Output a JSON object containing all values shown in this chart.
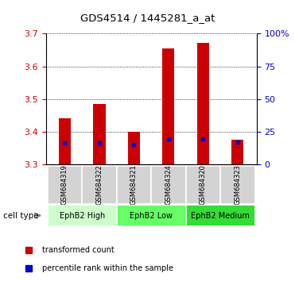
{
  "title": "GDS4514 / 1445281_a_at",
  "samples": [
    "GSM684319",
    "GSM684322",
    "GSM684321",
    "GSM684324",
    "GSM684320",
    "GSM684323"
  ],
  "transformed_counts": [
    3.44,
    3.485,
    3.4,
    3.655,
    3.672,
    3.375
  ],
  "percentile_ranks": [
    3.365,
    3.365,
    3.362,
    3.378,
    3.378,
    3.368
  ],
  "bar_base": 3.3,
  "ylim_left": [
    3.3,
    3.7
  ],
  "ylim_right": [
    0,
    100
  ],
  "yticks_left": [
    3.3,
    3.4,
    3.5,
    3.6,
    3.7
  ],
  "yticks_right": [
    0,
    25,
    50,
    75,
    100
  ],
  "ytick_labels_right": [
    "0",
    "25",
    "50",
    "75",
    "100%"
  ],
  "groups": [
    {
      "label": "EphB2 High",
      "indices": [
        0,
        1
      ],
      "color": "#ccffcc"
    },
    {
      "label": "EphB2 Low",
      "indices": [
        2,
        3
      ],
      "color": "#66ff66"
    },
    {
      "label": "EphB2 Medium",
      "indices": [
        4,
        5
      ],
      "color": "#33dd33"
    }
  ],
  "bar_color": "#cc0000",
  "percentile_color": "#0000cc",
  "bar_width": 0.35,
  "background_color": "#ffffff",
  "grid_color": "#000000",
  "tick_label_color_left": "#cc0000",
  "tick_label_color_right": "#0000cc",
  "sample_bg_color": "#d3d3d3",
  "cell_type_label": "cell type",
  "legend_items": [
    {
      "color": "#cc0000",
      "label": "transformed count"
    },
    {
      "color": "#0000cc",
      "label": "percentile rank within the sample"
    }
  ]
}
